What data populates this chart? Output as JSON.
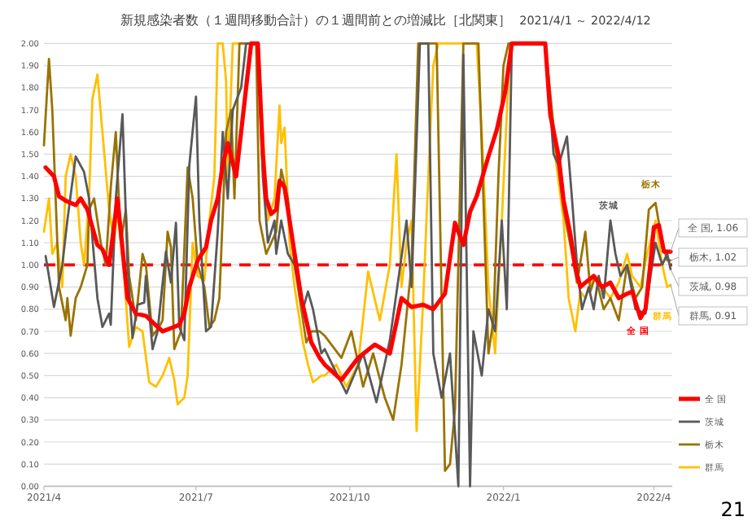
{
  "chart_data": {
    "type": "line",
    "title": "新規感染者数（１週間移動合計）の１週間前との増減比［北関東］",
    "subtitle": "2021/4/1 ～ 2022/4/12",
    "xlim": [
      "2021-04-01",
      "2022-04-12"
    ],
    "ylim": [
      0,
      2
    ],
    "grid": "y",
    "legend": "bottom right",
    "xticks": [
      {
        "value": "2021-04-01",
        "label": "2021/4"
      },
      {
        "value": "2021-07-01",
        "label": "2021/7"
      },
      {
        "value": "2021-10-01",
        "label": "2021/10"
      },
      {
        "value": "2022-01-01",
        "label": "2022/1"
      },
      {
        "value": "2022-04-01",
        "label": "2022/4"
      }
    ],
    "yticks": [
      {
        "value": 0,
        "label": "0.00"
      },
      {
        "value": 0.1,
        "label": "0.10"
      },
      {
        "value": 0.2,
        "label": "0.20"
      },
      {
        "value": 0.3,
        "label": "0.30"
      },
      {
        "value": 0.4,
        "label": "0.40"
      },
      {
        "value": 0.5,
        "label": "0.50"
      },
      {
        "value": 0.6,
        "label": "0.60"
      },
      {
        "value": 0.7,
        "label": "0.70"
      },
      {
        "value": 0.8,
        "label": "0.80"
      },
      {
        "value": 0.9,
        "label": "0.90"
      },
      {
        "value": 1,
        "label": "1.00"
      },
      {
        "value": 1.1,
        "label": "1.10"
      },
      {
        "value": 1.2,
        "label": "1.20"
      },
      {
        "value": 1.3,
        "label": "1.30"
      },
      {
        "value": 1.4,
        "label": "1.40"
      },
      {
        "value": 1.5,
        "label": "1.50"
      },
      {
        "value": 1.6,
        "label": "1.60"
      },
      {
        "value": 1.7,
        "label": "1.70"
      },
      {
        "value": 1.8,
        "label": "1.80"
      },
      {
        "value": 1.9,
        "label": "1.90"
      },
      {
        "value": 2,
        "label": "2.00"
      }
    ],
    "ref_lines": [
      {
        "axis": "y",
        "value": 1,
        "color": "#ff0000",
        "line_style": "dashed"
      }
    ],
    "series": [
      {
        "name": "全 国",
        "color": "#ff0000",
        "x": [
          "2021-04-02",
          "2021-04-07",
          "2021-04-10",
          "2021-04-14",
          "2021-04-20",
          "2021-04-23",
          "2021-04-27",
          "2021-04-30",
          "2021-05-03",
          "2021-05-06",
          "2021-05-10",
          "2021-05-15",
          "2021-05-21",
          "2021-05-26",
          "2021-06-01",
          "2021-06-08",
          "2021-06-11",
          "2021-06-18",
          "2021-06-21",
          "2021-06-24",
          "2021-06-27",
          "2021-07-02",
          "2021-07-07",
          "2021-07-10",
          "2021-07-14",
          "2021-07-17",
          "2021-07-20",
          "2021-07-25",
          "2021-07-28",
          "2021-07-31",
          "2021-08-03",
          "2021-08-07",
          "2021-08-10",
          "2021-08-12",
          "2021-08-15",
          "2021-08-18",
          "2021-08-20",
          "2021-08-23",
          "2021-08-26",
          "2021-08-30",
          "2021-09-02",
          "2021-09-05",
          "2021-09-08",
          "2021-09-13",
          "2021-09-16",
          "2021-09-26",
          "2021-10-06",
          "2021-10-16",
          "2021-10-25",
          "2021-11-01",
          "2021-11-07",
          "2021-11-14",
          "2021-11-20",
          "2021-11-27",
          "2021-12-03",
          "2021-12-08",
          "2021-12-12",
          "2021-12-16",
          "2021-12-23",
          "2021-12-28",
          "2022-01-02",
          "2022-01-06",
          "2022-01-26",
          "2022-01-29",
          "2022-02-03",
          "2022-02-06",
          "2022-02-10",
          "2022-02-13",
          "2022-02-16",
          "2022-02-19",
          "2022-02-24",
          "2022-03-01",
          "2022-03-06",
          "2022-03-11",
          "2022-03-16",
          "2022-03-19",
          "2022-03-24",
          "2022-03-27",
          "2022-03-30",
          "2022-04-01",
          "2022-04-04",
          "2022-04-07",
          "2022-04-11"
        ],
        "values": [
          1.44,
          1.4,
          1.31,
          1.29,
          1.27,
          1.3,
          1.25,
          1.17,
          1.09,
          1.07,
          1.0,
          1.3,
          0.85,
          0.78,
          0.77,
          0.72,
          0.7,
          0.72,
          0.73,
          0.78,
          0.9,
          1.02,
          1.08,
          1.2,
          1.3,
          1.45,
          1.55,
          1.4,
          1.6,
          1.8,
          2.0,
          2.0,
          1.5,
          1.3,
          1.23,
          1.25,
          1.38,
          1.35,
          1.2,
          1.0,
          0.85,
          0.75,
          0.65,
          0.58,
          0.55,
          0.48,
          0.58,
          0.64,
          0.6,
          0.85,
          0.81,
          0.82,
          0.8,
          0.87,
          1.19,
          1.09,
          1.24,
          1.31,
          1.49,
          1.61,
          1.78,
          2.0,
          2.0,
          1.68,
          1.49,
          1.29,
          1.14,
          0.99,
          0.9,
          0.92,
          0.95,
          0.9,
          0.92,
          0.85,
          0.87,
          0.88,
          0.76,
          0.8,
          1.01,
          1.17,
          1.18,
          1.06,
          1.06
        ]
      },
      {
        "name": "茨城",
        "color": "#595959",
        "x": [
          "2021-04-02",
          "2021-04-07",
          "2021-04-12",
          "2021-04-15",
          "2021-04-20",
          "2021-04-25",
          "2021-04-28",
          "2021-05-03",
          "2021-05-06",
          "2021-05-10",
          "2021-05-11",
          "2021-05-14",
          "2021-05-18",
          "2021-05-21",
          "2021-05-24",
          "2021-05-27",
          "2021-05-31",
          "2021-06-01",
          "2021-06-05",
          "2021-06-08",
          "2021-06-13",
          "2021-06-16",
          "2021-06-19",
          "2021-06-21",
          "2021-06-24",
          "2021-06-27",
          "2021-07-01",
          "2021-07-03",
          "2021-07-07",
          "2021-07-10",
          "2021-07-14",
          "2021-07-17",
          "2021-07-20",
          "2021-07-23",
          "2021-07-28",
          "2021-07-31",
          "2021-08-07",
          "2021-08-10",
          "2021-08-13",
          "2021-08-17",
          "2021-08-18",
          "2021-08-21",
          "2021-08-25",
          "2021-08-29",
          "2021-09-03",
          "2021-09-06",
          "2021-09-09",
          "2021-09-14",
          "2021-09-16",
          "2021-09-29",
          "2021-10-09",
          "2021-10-17",
          "2021-10-25",
          "2021-11-04",
          "2021-11-07",
          "2021-11-12",
          "2021-11-17",
          "2021-11-20",
          "2021-11-25",
          "2021-11-30",
          "2021-12-05",
          "2021-12-08",
          "2021-12-12",
          "2021-12-14",
          "2021-12-19",
          "2021-12-23",
          "2021-12-27",
          "2021-12-31",
          "2022-01-03",
          "2022-01-06",
          "2022-01-26",
          "2022-01-31",
          "2022-02-03",
          "2022-02-08",
          "2022-02-11",
          "2022-02-14",
          "2022-02-17",
          "2022-02-21",
          "2022-02-24",
          "2022-02-27",
          "2022-03-02",
          "2022-03-06",
          "2022-03-09",
          "2022-03-12",
          "2022-03-16",
          "2022-03-21",
          "2022-03-27",
          "2022-03-30",
          "2022-04-02",
          "2022-04-06",
          "2022-04-09",
          "2022-04-11"
        ],
        "values": [
          1.04,
          0.81,
          1.0,
          1.2,
          1.49,
          1.42,
          1.3,
          0.85,
          0.72,
          0.78,
          0.73,
          1.3,
          1.68,
          1.0,
          0.67,
          0.82,
          0.83,
          0.95,
          0.62,
          0.7,
          1.06,
          0.92,
          1.19,
          0.72,
          0.66,
          1.45,
          1.76,
          1.2,
          0.7,
          0.72,
          1.15,
          1.6,
          1.3,
          1.7,
          1.8,
          2.0,
          2.0,
          1.4,
          1.1,
          1.2,
          1.05,
          1.2,
          1.05,
          1.0,
          0.8,
          0.88,
          0.8,
          0.6,
          0.62,
          0.42,
          0.6,
          0.38,
          0.66,
          1.2,
          0.9,
          2.0,
          2.0,
          0.6,
          0.4,
          0.6,
          0.0,
          1.95,
          0.0,
          0.7,
          0.5,
          0.8,
          0.7,
          1.2,
          0.8,
          2.0,
          2.0,
          1.5,
          1.45,
          1.58,
          1.3,
          1.0,
          0.8,
          0.9,
          0.8,
          0.95,
          0.85,
          1.2,
          1.05,
          0.95,
          1.0,
          0.8,
          0.78,
          0.95,
          1.1,
          1.0,
          1.05,
          0.98
        ]
      },
      {
        "name": "栃木",
        "color": "#997300",
        "x": [
          "2021-04-01",
          "2021-04-04",
          "2021-04-06",
          "2021-04-08",
          "2021-04-10",
          "2021-04-14",
          "2021-04-15",
          "2021-04-17",
          "2021-04-20",
          "2021-04-23",
          "2021-04-27",
          "2021-04-28",
          "2021-05-01",
          "2021-05-05",
          "2021-05-08",
          "2021-05-11",
          "2021-05-14",
          "2021-05-17",
          "2021-05-20",
          "2021-05-22",
          "2021-05-26",
          "2021-05-30",
          "2021-06-01",
          "2021-06-05",
          "2021-06-09",
          "2021-06-11",
          "2021-06-14",
          "2021-06-16",
          "2021-06-18",
          "2021-06-22",
          "2021-06-26",
          "2021-06-29",
          "2021-07-02",
          "2021-07-06",
          "2021-07-09",
          "2021-07-12",
          "2021-07-15",
          "2021-07-19",
          "2021-07-22",
          "2021-07-24",
          "2021-07-27",
          "2021-08-06",
          "2021-08-08",
          "2021-08-12",
          "2021-08-15",
          "2021-08-18",
          "2021-08-21",
          "2021-08-25",
          "2021-08-29",
          "2021-09-02",
          "2021-09-05",
          "2021-09-08",
          "2021-09-13",
          "2021-09-16",
          "2021-09-26",
          "2021-10-02",
          "2021-10-09",
          "2021-10-15",
          "2021-10-22",
          "2021-10-27",
          "2021-11-01",
          "2021-11-07",
          "2021-11-11",
          "2021-11-22",
          "2021-11-26",
          "2021-11-27",
          "2021-11-30",
          "2021-12-03",
          "2021-12-08",
          "2021-12-17",
          "2021-12-23",
          "2021-12-26",
          "2021-12-29",
          "2022-01-01",
          "2022-01-04",
          "2022-01-26",
          "2022-02-01",
          "2022-02-06",
          "2022-02-11",
          "2022-02-14",
          "2022-02-19",
          "2022-02-22",
          "2022-02-25",
          "2022-03-02",
          "2022-03-06",
          "2022-03-11",
          "2022-03-16",
          "2022-03-21",
          "2022-03-25",
          "2022-03-29",
          "2022-04-02",
          "2022-04-06",
          "2022-04-09",
          "2022-04-11"
        ],
        "values": [
          1.54,
          1.93,
          1.7,
          1.3,
          0.9,
          0.75,
          0.85,
          0.68,
          0.85,
          0.9,
          1.0,
          1.25,
          1.3,
          1.1,
          1.0,
          1.35,
          1.6,
          1.1,
          1.25,
          0.95,
          0.75,
          1.05,
          1.0,
          0.68,
          0.72,
          0.75,
          1.15,
          1.08,
          0.62,
          0.7,
          1.44,
          1.3,
          1.0,
          0.9,
          0.72,
          0.75,
          0.85,
          1.6,
          1.7,
          1.3,
          2.0,
          2.0,
          1.2,
          1.05,
          1.1,
          1.15,
          1.43,
          1.3,
          1.0,
          0.8,
          0.65,
          0.7,
          0.7,
          0.68,
          0.58,
          0.7,
          0.45,
          0.6,
          0.4,
          0.3,
          0.55,
          1.0,
          2.0,
          2.0,
          0.45,
          0.07,
          0.1,
          0.35,
          2.0,
          2.0,
          0.6,
          0.75,
          1.4,
          1.9,
          2.0,
          2.0,
          1.55,
          1.25,
          1.05,
          0.92,
          1.15,
          0.88,
          0.95,
          0.8,
          0.85,
          0.75,
          1.0,
          0.85,
          0.9,
          1.25,
          1.28,
          1.1,
          1.02,
          1.02
        ]
      },
      {
        "name": "群馬",
        "color": "#ffc000",
        "x": [
          "2021-04-01",
          "2021-04-04",
          "2021-04-06",
          "2021-04-09",
          "2021-04-12",
          "2021-04-14",
          "2021-04-17",
          "2021-04-20",
          "2021-04-23",
          "2021-04-25",
          "2021-04-28",
          "2021-04-30",
          "2021-05-03",
          "2021-05-06",
          "2021-05-10",
          "2021-05-13",
          "2021-05-15",
          "2021-05-19",
          "2021-05-22",
          "2021-05-26",
          "2021-05-30",
          "2021-06-03",
          "2021-06-07",
          "2021-06-11",
          "2021-06-15",
          "2021-06-18",
          "2021-06-20",
          "2021-06-24",
          "2021-06-26",
          "2021-06-29",
          "2021-07-02",
          "2021-07-06",
          "2021-07-09",
          "2021-07-12",
          "2021-07-14",
          "2021-07-17",
          "2021-07-19",
          "2021-07-20",
          "2021-07-23",
          "2021-08-07",
          "2021-08-10",
          "2021-08-13",
          "2021-08-17",
          "2021-08-20",
          "2021-08-21",
          "2021-08-23",
          "2021-08-26",
          "2021-08-29",
          "2021-09-03",
          "2021-09-06",
          "2021-09-09",
          "2021-09-14",
          "2021-09-16",
          "2021-09-23",
          "2021-09-29",
          "2021-10-06",
          "2021-10-12",
          "2021-10-19",
          "2021-10-25",
          "2021-10-29",
          "2021-11-01",
          "2021-11-04",
          "2021-11-07",
          "2021-11-10",
          "2021-11-14",
          "2021-11-17",
          "2021-11-20",
          "2021-11-23",
          "2021-12-16",
          "2021-12-19",
          "2021-12-23",
          "2021-12-27",
          "2021-12-31",
          "2022-01-05",
          "2022-01-26",
          "2022-01-31",
          "2022-02-06",
          "2022-02-09",
          "2022-02-13",
          "2022-02-16",
          "2022-02-19",
          "2022-02-24",
          "2022-03-01",
          "2022-03-06",
          "2022-03-11",
          "2022-03-16",
          "2022-03-19",
          "2022-03-24",
          "2022-03-28",
          "2022-04-02",
          "2022-04-06",
          "2022-04-09",
          "2022-04-11"
        ],
        "values": [
          1.15,
          1.3,
          1.05,
          1.1,
          0.9,
          1.4,
          1.5,
          1.4,
          1.1,
          1.0,
          1.3,
          1.75,
          1.86,
          1.6,
          1.25,
          1.1,
          1.25,
          0.95,
          0.63,
          0.72,
          0.7,
          0.47,
          0.45,
          0.5,
          0.58,
          0.48,
          0.37,
          0.4,
          0.5,
          1.1,
          0.95,
          0.93,
          1.2,
          1.4,
          2.0,
          2.0,
          1.83,
          1.4,
          2.0,
          2.0,
          1.6,
          1.2,
          1.3,
          1.72,
          1.55,
          1.62,
          1.1,
          0.9,
          0.65,
          0.55,
          0.47,
          0.5,
          0.5,
          0.55,
          0.45,
          0.55,
          0.97,
          0.75,
          1.0,
          1.5,
          0.9,
          1.1,
          1.2,
          0.25,
          0.85,
          1.4,
          1.9,
          2.0,
          2.0,
          1.6,
          0.9,
          0.6,
          1.2,
          2.0,
          2.0,
          1.55,
          1.2,
          0.85,
          0.7,
          0.88,
          0.85,
          0.95,
          0.9,
          0.85,
          0.92,
          1.05,
          0.95,
          0.9,
          1.05,
          1.2,
          1.0,
          0.9,
          0.91
        ]
      }
    ],
    "annotations": [
      "全 国",
      "茨城",
      "栃木",
      "群馬",
      {
        "text": "全 国, 1.06",
        "x": "2022-04-11",
        "y": 1.06
      },
      {
        "text": "栃木, 1.02",
        "x": "2022-04-11",
        "y": 1.02
      },
      {
        "text": "茨城, 0.98",
        "x": "2022-04-11",
        "y": 0.98
      },
      {
        "text": "群馬, 0.91",
        "x": "2022-04-11",
        "y": 0.91
      },
      "21"
    ]
  }
}
